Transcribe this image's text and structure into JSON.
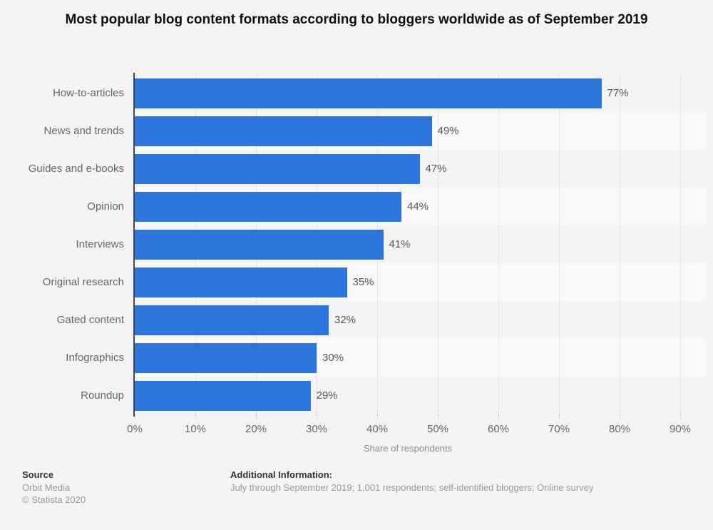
{
  "title": "Most popular blog content formats according to bloggers worldwide as of September 2019",
  "chart_data": {
    "type": "bar",
    "orientation": "horizontal",
    "title": "Most popular blog content formats according to bloggers worldwide as of September 2019",
    "categories": [
      "How-to-articles",
      "News and trends",
      "Guides and e-books",
      "Opinion",
      "Interviews",
      "Original research",
      "Gated content",
      "Infographics",
      "Roundup"
    ],
    "values": [
      77,
      49,
      47,
      44,
      41,
      35,
      32,
      30,
      29
    ],
    "value_labels": [
      "77%",
      "49%",
      "47%",
      "44%",
      "41%",
      "35%",
      "32%",
      "30%",
      "29%"
    ],
    "xlabel": "Share of respondents",
    "ylabel": "",
    "xlim": [
      0,
      90
    ],
    "xticks": [
      "0%",
      "10%",
      "20%",
      "30%",
      "40%",
      "50%",
      "60%",
      "70%",
      "80%",
      "90%"
    ],
    "grid": "vertical-dotted",
    "legend": "none",
    "bar_color": "#2b75dc",
    "stripe_colors": [
      "#f4f4f4",
      "#fafafa"
    ],
    "axis_color": "#474747",
    "gridline_color": "#d2d2d2"
  },
  "footer": {
    "source_label": "Source",
    "source_lines": [
      "Orbit Media",
      "© Statista 2020"
    ],
    "additional_label": "Additional Information:",
    "additional_text": "July through September 2019; 1,001 respondents; self-identified bloggers; Online survey"
  },
  "page": {
    "background": "#f4f4f4"
  }
}
